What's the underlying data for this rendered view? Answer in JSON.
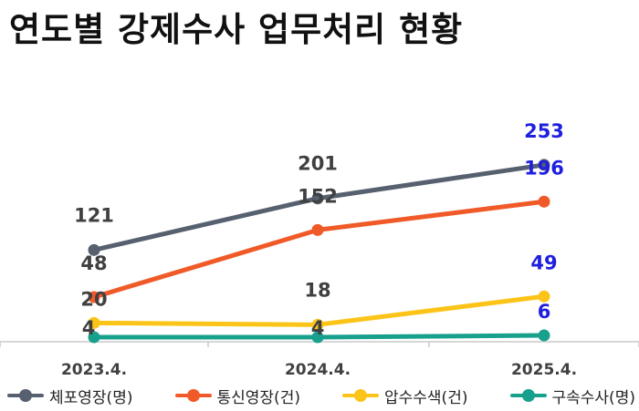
{
  "title": "연도별 강제수사 업무처리 현황",
  "chart_data": {
    "type": "line",
    "categories": [
      "2023.4.",
      "2024.4.",
      "2025.4."
    ],
    "series": [
      {
        "name": "체포영장(명)",
        "color": "#56606f",
        "values": [
          121,
          201,
          253
        ],
        "label_colors": [
          "#404040",
          "#404040",
          "#1f1fe0"
        ]
      },
      {
        "name": "통신영장(건)",
        "color": "#f05a28",
        "values": [
          48,
          152,
          196
        ],
        "label_colors": [
          "#404040",
          "#404040",
          "#1f1fe0"
        ]
      },
      {
        "name": "압수수색(건)",
        "color": "#fcc419",
        "values": [
          20,
          18,
          49
        ],
        "label_colors": [
          "#404040",
          "#404040",
          "#1f1fe0"
        ]
      },
      {
        "name": "구속수사(명)",
        "color": "#17a08c",
        "values": [
          4,
          4,
          6
        ],
        "label_colors": [
          "#404040",
          "#404040",
          "#1f1fe0"
        ]
      }
    ],
    "legend_position": "bottom",
    "grid": false
  }
}
